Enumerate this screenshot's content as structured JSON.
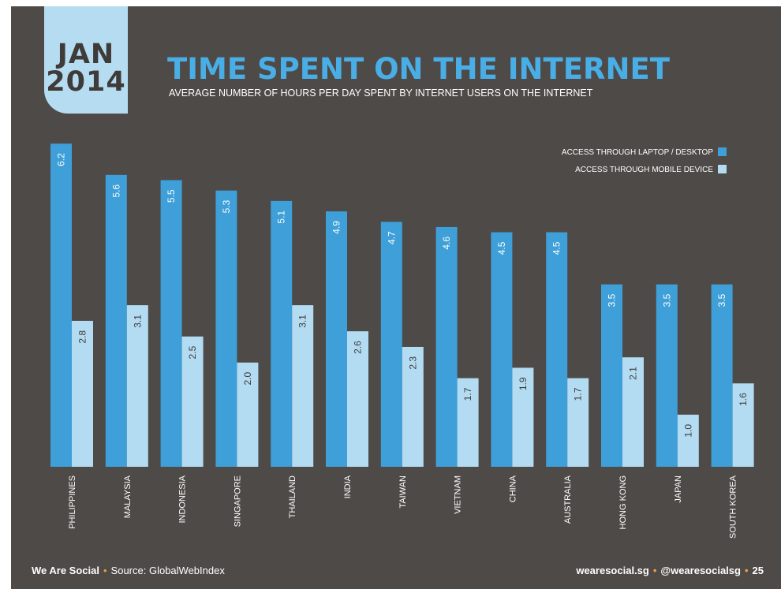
{
  "badge": {
    "month": "JAN",
    "year": "2014"
  },
  "header": {
    "title": "TIME SPENT ON THE INTERNET",
    "subtitle": "AVERAGE NUMBER OF HOURS PER DAY SPENT BY INTERNET USERS ON THE INTERNET"
  },
  "colors": {
    "background": "#4e4a47",
    "accent": "#4aaee6",
    "laptop": "#3f9fd8",
    "mobile": "#b3dbf2",
    "badge": "#b6dcf2",
    "footer_dot": "#e6a23c"
  },
  "chart_data": {
    "type": "bar",
    "categories": [
      "PHILIPPINES",
      "MALAYSIA",
      "INDONESIA",
      "SINGAPORE",
      "THAILAND",
      "INDIA",
      "TAIWAN",
      "VIETNAM",
      "CHINA",
      "AUSTRALIA",
      "HONG KONG",
      "JAPAN",
      "SOUTH KOREA"
    ],
    "series": [
      {
        "name": "ACCESS THROUGH LAPTOP / DESKTOP",
        "values": [
          6.2,
          5.6,
          5.5,
          5.3,
          5.1,
          4.9,
          4.7,
          4.6,
          4.5,
          4.5,
          3.5,
          3.5,
          3.5
        ]
      },
      {
        "name": "ACCESS THROUGH MOBILE DEVICE",
        "values": [
          2.8,
          3.1,
          2.5,
          2.0,
          3.1,
          2.6,
          2.3,
          1.7,
          1.9,
          1.7,
          2.1,
          1.0,
          1.6
        ]
      }
    ],
    "value_labels": [
      [
        "6.2",
        "5.6",
        "5.5",
        "5.3",
        "5.1",
        "4.9",
        "4.7",
        "4.6",
        "4.5",
        "4.5",
        "3.5",
        "3.5",
        "3.5"
      ],
      [
        "2.8",
        "3.1",
        "2.5",
        "2.0",
        "3.1",
        "2.6",
        "2.3",
        "1.7",
        "1.9",
        "1.7",
        "2.1",
        "1.0",
        "1.6"
      ]
    ],
    "legend_position": "top-right",
    "grid": false
  },
  "footer": {
    "brand": "We Are Social",
    "separator": "•",
    "source": "Source: GlobalWebIndex",
    "website": "wearesocial.sg",
    "handle": "@wearesocialsg",
    "page_number": "25"
  }
}
